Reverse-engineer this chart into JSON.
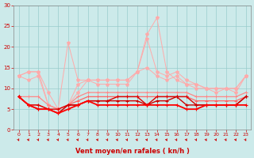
{
  "x": [
    0,
    1,
    2,
    3,
    4,
    5,
    6,
    7,
    8,
    9,
    10,
    11,
    12,
    13,
    14,
    15,
    16,
    17,
    18,
    19,
    20,
    21,
    22,
    23
  ],
  "line_light1": [
    13,
    12,
    13,
    6,
    5,
    6,
    9,
    12,
    11,
    11,
    11,
    11,
    14,
    15,
    13,
    12,
    13,
    11,
    10,
    10,
    9,
    10,
    9,
    13
  ],
  "line_light2": [
    13,
    14,
    14,
    9,
    5,
    6,
    11,
    12,
    12,
    12,
    12,
    12,
    14,
    22,
    14,
    13,
    14,
    12,
    11,
    10,
    10,
    10,
    10,
    13
  ],
  "line_light3": [
    13,
    14,
    14,
    6,
    5,
    21,
    12,
    12,
    12,
    12,
    12,
    12,
    14,
    23,
    27,
    14,
    12,
    11,
    11,
    10,
    10,
    10,
    10,
    13
  ],
  "line_med1": [
    8,
    8,
    8,
    6,
    5,
    6,
    8,
    9,
    9,
    9,
    9,
    9,
    9,
    9,
    9,
    9,
    9,
    9,
    8,
    8,
    8,
    8,
    8,
    9
  ],
  "line_med2": [
    8,
    6,
    6,
    5,
    4,
    6,
    7,
    8,
    8,
    8,
    8,
    8,
    8,
    8,
    8,
    8,
    8,
    8,
    7,
    7,
    7,
    7,
    7,
    8
  ],
  "line_dark1": [
    8,
    6,
    6,
    5,
    5,
    6,
    6,
    7,
    7,
    7,
    8,
    8,
    8,
    6,
    8,
    8,
    8,
    8,
    6,
    6,
    6,
    6,
    6,
    8
  ],
  "line_dark2": [
    8,
    6,
    5,
    5,
    4,
    6,
    6,
    7,
    7,
    7,
    7,
    7,
    7,
    6,
    7,
    7,
    8,
    6,
    6,
    6,
    6,
    6,
    6,
    8
  ],
  "line_dark3": [
    8,
    6,
    5,
    5,
    4,
    5,
    6,
    7,
    6,
    6,
    6,
    6,
    6,
    6,
    6,
    6,
    6,
    5,
    5,
    6,
    6,
    6,
    6,
    6
  ],
  "bg_color": "#cceaea",
  "grid_color": "#99cccc",
  "xlabel": "Vent moyen/en rafales ( kn/h )",
  "xlabel_color": "#cc0000",
  "tick_color": "#cc0000",
  "ylim": [
    0,
    30
  ],
  "xlim": [
    -0.5,
    23.5
  ],
  "yticks": [
    0,
    5,
    10,
    15,
    20,
    25,
    30
  ],
  "xticks": [
    0,
    1,
    2,
    3,
    4,
    5,
    6,
    7,
    8,
    9,
    10,
    11,
    12,
    13,
    14,
    15,
    16,
    17,
    18,
    19,
    20,
    21,
    22,
    23
  ]
}
